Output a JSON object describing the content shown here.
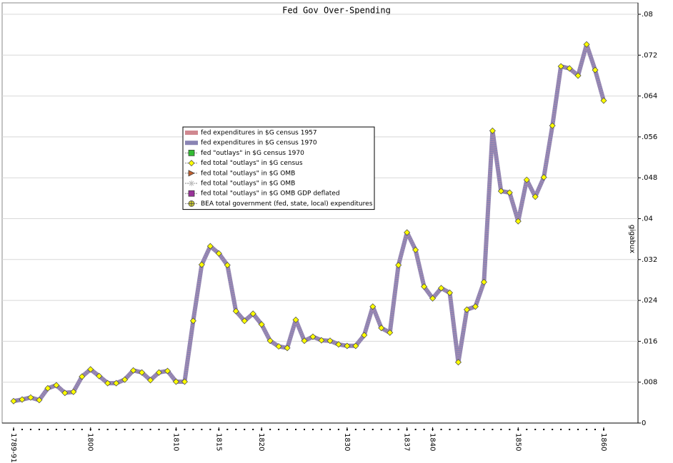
{
  "chart_data": {
    "type": "line",
    "title": "Fed Gov Over-Spending",
    "y_label": "gigabux",
    "categories": [
      "1789-91",
      null,
      null,
      null,
      null,
      null,
      null,
      null,
      null,
      "1800",
      null,
      null,
      null,
      null,
      null,
      null,
      null,
      null,
      null,
      "1810",
      null,
      null,
      null,
      null,
      "1815",
      null,
      null,
      null,
      null,
      "1820",
      null,
      null,
      null,
      null,
      null,
      null,
      null,
      null,
      null,
      "1830",
      null,
      null,
      null,
      null,
      null,
      null,
      "1837",
      null,
      null,
      "1840",
      null,
      null,
      null,
      null,
      null,
      null,
      null,
      null,
      null,
      "1850",
      null,
      null,
      null,
      null,
      null,
      null,
      null,
      null,
      null,
      "1860"
    ],
    "series": [
      {
        "name": "fed expenditures in $G census 1957",
        "color": "#d08890",
        "marker": "band"
      },
      {
        "name": "fed expenditures in $G census 1970",
        "color": "#8a84b4",
        "marker": "band",
        "values": [
          0.0043,
          0.0046,
          0.005,
          0.0045,
          0.0068,
          0.0074,
          0.0059,
          0.0061,
          0.0091,
          0.0105,
          0.0092,
          0.0078,
          0.0078,
          0.0085,
          0.0103,
          0.0099,
          0.0084,
          0.0099,
          0.0102,
          0.0081,
          0.0081,
          0.02,
          0.031,
          0.0346,
          0.0332,
          0.0309,
          0.0219,
          0.02,
          0.0214,
          0.0193,
          0.0161,
          0.015,
          0.0147,
          0.0202,
          0.0161,
          0.0169,
          0.0162,
          0.0161,
          0.0154,
          0.0151,
          0.0151,
          0.0172,
          0.0228,
          0.0186,
          0.0177,
          0.0309,
          0.0373,
          0.0339,
          0.0267,
          0.0244,
          0.0264,
          0.0255,
          0.0119,
          0.0222,
          0.0228,
          0.0276,
          0.0572,
          0.0454,
          0.0451,
          0.0395,
          0.0476,
          0.0443,
          0.0481,
          0.0582,
          0.0698,
          0.0694,
          0.068,
          0.0741,
          0.0691,
          0.0631
        ]
      },
      {
        "name": "fed \"outlays\" in $G census 1970",
        "color": "#33bb33",
        "marker": "square"
      },
      {
        "name": "fed total \"outlays\" in $G census",
        "color": "#ffff00",
        "marker": "diamond",
        "values": [
          0.0043,
          0.0046,
          0.005,
          0.0045,
          0.0068,
          0.0074,
          0.0059,
          0.0061,
          0.0091,
          0.0105,
          0.0092,
          0.0078,
          0.0078,
          0.0085,
          0.0103,
          0.0099,
          0.0084,
          0.0099,
          0.0102,
          0.0081,
          0.0081,
          0.02,
          0.031,
          0.0346,
          0.0332,
          0.0309,
          0.0219,
          0.02,
          0.0214,
          0.0193,
          0.0161,
          0.015,
          0.0147,
          0.0202,
          0.0161,
          0.0169,
          0.0162,
          0.0161,
          0.0154,
          0.0151,
          0.0151,
          0.0172,
          0.0228,
          0.0186,
          0.0177,
          0.0309,
          0.0373,
          0.0339,
          0.0267,
          0.0244,
          0.0264,
          0.0255,
          0.0119,
          0.0222,
          0.0228,
          0.0276,
          0.0572,
          0.0454,
          0.0451,
          0.0395,
          0.0476,
          0.0443,
          0.0481,
          0.0582,
          0.0698,
          0.0694,
          0.068,
          0.0741,
          0.0691,
          0.0631
        ]
      },
      {
        "name": "fed total \"outlays\" in $G OMB",
        "color": "#c06030",
        "marker": "triangle"
      },
      {
        "name": "fed total \"outlays\" in $G OMB",
        "color": "#bbbbbb",
        "marker": "star"
      },
      {
        "name": "fed total \"outlays\" in $G OMB GDP deflated",
        "color": "#993399",
        "marker": "square"
      },
      {
        "name": "BEA total government (fed, state, local) expenditures",
        "color": "#cccc33",
        "marker": "circle-cross"
      }
    ],
    "ylim": [
      0,
      0.08
    ],
    "yticks": [
      0,
      {
        "value": 0.008,
        "label": ".008"
      },
      {
        "value": 0.016,
        "label": ".016"
      },
      {
        "value": 0.024,
        "label": ".024"
      },
      {
        "value": 0.032,
        "label": ".032"
      },
      {
        "value": 0.04,
        "label": ".04"
      },
      {
        "value": 0.048,
        "label": ".048"
      },
      {
        "value": 0.056,
        "label": ".056"
      },
      {
        "value": 0.064,
        "label": ".064"
      },
      {
        "value": 0.072,
        "label": ".072"
      },
      {
        "value": 0.08,
        "label": ".08"
      }
    ],
    "grid": true,
    "legend": "center-left"
  }
}
